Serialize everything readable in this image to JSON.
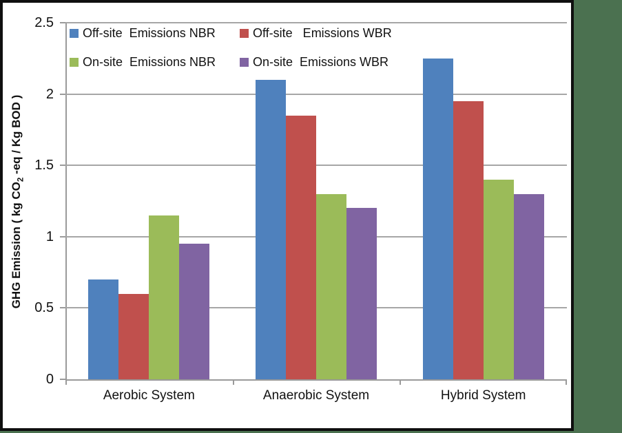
{
  "page": {
    "background_color": "#4b7150",
    "chart_background": "#ffffff",
    "chart_border_color": "#0f0f0f"
  },
  "chart_data": {
    "type": "bar",
    "title": "",
    "categories": [
      "Aerobic System",
      "Anaerobic System",
      "Hybrid System"
    ],
    "series": [
      {
        "name": "Off-site  Emissions NBR",
        "color": "#4F81BD",
        "values": [
          0.7,
          2.1,
          2.25
        ]
      },
      {
        "name": "Off-site   Emissions WBR",
        "color": "#C0504D",
        "values": [
          0.6,
          1.85,
          1.95
        ]
      },
      {
        "name": "On-site  Emissions NBR",
        "color": "#9BBB59",
        "values": [
          1.15,
          1.3,
          1.4
        ]
      },
      {
        "name": "On-site  Emissions WBR",
        "color": "#8064A2",
        "values": [
          0.95,
          1.2,
          1.3
        ]
      }
    ],
    "y_axis": {
      "label_pre": "GHG Emission ( kg CO",
      "label_sub": "2",
      "label_post": " -eq / Kg BOD )",
      "ticks": [
        "0",
        "0.5",
        "1",
        "1.5",
        "2",
        "2.5"
      ],
      "min": 0,
      "max": 2.5
    },
    "grid": true,
    "gridline_color": "#a6a6a6",
    "axis_color": "#9a9a9a",
    "legend_position": "top-left-inside"
  }
}
